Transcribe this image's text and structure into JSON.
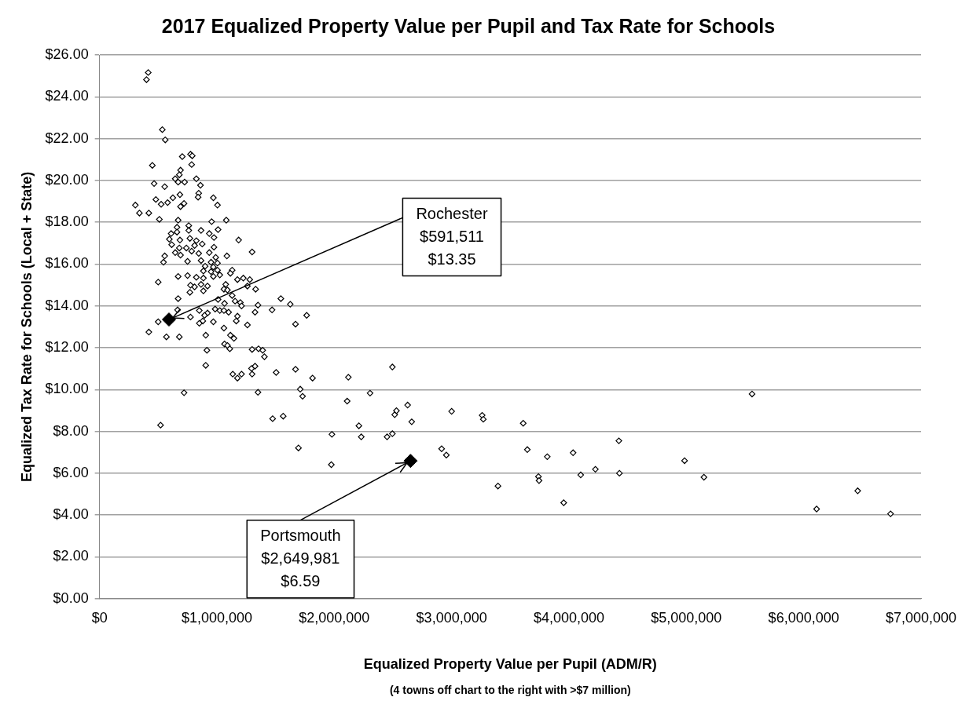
{
  "chart_data": {
    "type": "scatter",
    "title": "2017 Equalized Property Value per Pupil and Tax Rate for Schools",
    "xlabel": "Equalized Property Value per Pupil (ADM/R)",
    "ylabel": "Equalized Tax Rate for Schools (Local + State)",
    "xlim": [
      0,
      7000000
    ],
    "xticks": [
      {
        "value": 0,
        "label": "$0"
      },
      {
        "value": 1000000,
        "label": "$1,000,000"
      },
      {
        "value": 2000000,
        "label": "$2,000,000"
      },
      {
        "value": 3000000,
        "label": "$3,000,000"
      },
      {
        "value": 4000000,
        "label": "$4,000,000"
      },
      {
        "value": 5000000,
        "label": "$5,000,000"
      },
      {
        "value": 6000000,
        "label": "$6,000,000"
      },
      {
        "value": 7000000,
        "label": "$7,000,000"
      }
    ],
    "ylim": [
      0,
      26
    ],
    "yticks": [
      {
        "value": 0,
        "label": "$0.00"
      },
      {
        "value": 2,
        "label": "$2.00"
      },
      {
        "value": 4,
        "label": "$4.00"
      },
      {
        "value": 6,
        "label": "$6.00"
      },
      {
        "value": 8,
        "label": "$8.00"
      },
      {
        "value": 10,
        "label": "$10.00"
      },
      {
        "value": 12,
        "label": "$12.00"
      },
      {
        "value": 14,
        "label": "$14.00"
      },
      {
        "value": 16,
        "label": "$16.00"
      },
      {
        "value": 18,
        "label": "$18.00"
      },
      {
        "value": 20,
        "label": "$20.00"
      },
      {
        "value": 22,
        "label": "$22.00"
      },
      {
        "value": 24,
        "label": "$24.00"
      },
      {
        "value": 26,
        "label": "$26.00"
      }
    ],
    "grid": "y",
    "legend": false,
    "marker": "diamond",
    "series": [
      {
        "color": "#000000",
        "x": [
          415000,
          400000,
          535000,
          560000,
          705000,
          775000,
          790000,
          785000,
          450000,
          690000,
          680000,
          645000,
          670000,
          725000,
          825000,
          860000,
          465000,
          555000,
          845000,
          840000,
          685000,
          625000,
          480000,
          580000,
          525000,
          305000,
          720000,
          690000,
          970000,
          1005000,
          340000,
          420000,
          510000,
          670000,
          955000,
          1080000,
          660000,
          760000,
          865000,
          1010000,
          610000,
          660000,
          760000,
          935000,
          595000,
          685000,
          770000,
          825000,
          975000,
          1185000,
          615000,
          680000,
          740000,
          810000,
          875000,
          975000,
          1300000,
          645000,
          690000,
          785000,
          845000,
          935000,
          555000,
          545000,
          750000,
          865000,
          990000,
          1085000,
          950000,
          1005000,
          900000,
          970000,
          885000,
          950000,
          1005000,
          1130000,
          1115000,
          1025000,
          750000,
          670000,
          825000,
          885000,
          970000,
          500000,
          1175000,
          1225000,
          1280000,
          1075000,
          1260000,
          775000,
          810000,
          865000,
          920000,
          1060000,
          1090000,
          770000,
          885000,
          1330000,
          1130000,
          670000,
          1010000,
          1545000,
          1625000,
          1155000,
          1200000,
          1065000,
          1350000,
          1210000,
          665000,
          850000,
          920000,
          985000,
          1025000,
          1060000,
          1100000,
          1325000,
          1470000,
          1175000,
          895000,
          775000,
          880000,
          970000,
          1165000,
          1260000,
          1670000,
          500000,
          850000,
          1060000,
          420000,
          570000,
          680000,
          905000,
          1115000,
          1145000,
          1065000,
          1090000,
          1110000,
          915000,
          1300000,
          1355000,
          1390000,
          1405000,
          905000,
          1295000,
          1325000,
          1135000,
          1175000,
          1210000,
          1300000,
          1505000,
          1670000,
          1765000,
          2495000,
          2120000,
          1815000,
          2305000,
          2110000,
          1710000,
          1730000,
          1350000,
          1475000,
          1565000,
          1695000,
          1975000,
          1980000,
          2210000,
          2230000,
          2450000,
          2495000,
          2515000,
          2530000,
          2625000,
          2660000,
          3000000,
          3260000,
          3270000,
          3610000,
          2915000,
          2955000,
          3645000,
          3815000,
          4035000,
          3395000,
          3740000,
          3745000,
          3955000,
          5560000,
          4425000,
          4100000,
          4225000,
          4430000,
          4985000,
          5150000,
          6110000,
          6460000,
          6740000,
          520000,
          720000
        ],
        "values": [
          25.16,
          24.82,
          22.43,
          21.94,
          21.14,
          21.25,
          21.18,
          20.76,
          20.72,
          20.49,
          20.27,
          20.08,
          19.92,
          19.92,
          20.08,
          19.77,
          19.85,
          19.7,
          19.39,
          19.2,
          19.32,
          19.17,
          19.09,
          18.94,
          18.86,
          18.82,
          18.9,
          18.75,
          19.17,
          18.82,
          18.44,
          18.44,
          18.14,
          18.1,
          18.03,
          18.1,
          17.76,
          17.84,
          17.61,
          17.65,
          17.46,
          17.53,
          17.61,
          17.46,
          17.19,
          17.15,
          17.23,
          17.12,
          17.27,
          17.15,
          16.93,
          16.77,
          16.77,
          16.89,
          16.96,
          16.81,
          16.58,
          16.55,
          16.43,
          16.62,
          16.51,
          16.55,
          16.39,
          16.09,
          16.13,
          16.17,
          16.32,
          16.39,
          16.09,
          16.05,
          15.9,
          15.86,
          15.67,
          15.64,
          15.71,
          15.71,
          15.56,
          15.48,
          15.45,
          15.41,
          15.37,
          15.33,
          15.41,
          15.14,
          15.26,
          15.33,
          15.26,
          15.03,
          14.95,
          14.99,
          14.91,
          15.03,
          14.95,
          14.8,
          14.76,
          14.65,
          14.72,
          14.8,
          14.5,
          14.35,
          14.31,
          14.35,
          14.08,
          14.23,
          14.16,
          14.12,
          14.04,
          14,
          13.81,
          13.78,
          13.66,
          13.85,
          13.78,
          13.78,
          13.7,
          13.7,
          13.81,
          13.51,
          13.55,
          13.47,
          13.28,
          13.24,
          13.28,
          13.09,
          13.13,
          13.24,
          13.17,
          12.94,
          12.75,
          12.52,
          12.52,
          12.6,
          12.6,
          12.45,
          12.18,
          12.11,
          11.95,
          11.88,
          11.92,
          11.95,
          11.88,
          11.57,
          11.16,
          11.01,
          11.12,
          10.74,
          10.55,
          10.74,
          10.74,
          10.82,
          10.97,
          13.55,
          11.08,
          10.59,
          10.55,
          9.83,
          9.45,
          10.02,
          9.68,
          9.87,
          8.61,
          8.73,
          7.21,
          6.41,
          7.86,
          8.27,
          7.74,
          7.74,
          7.89,
          8.8,
          8.99,
          9.26,
          8.46,
          8.96,
          8.77,
          8.58,
          8.39,
          7.17,
          6.87,
          7.13,
          6.79,
          6.98,
          5.39,
          5.84,
          5.65,
          4.59,
          9.79,
          7.55,
          5.92,
          6.19,
          6,
          6.6,
          5.81,
          4.29,
          5.16,
          4.06,
          8.3,
          9.85
        ]
      },
      {
        "color": "#000000",
        "x": [
          591511
        ],
        "values": [
          13.35
        ]
      },
      {
        "color": "#000000",
        "x": [
          2649981
        ],
        "values": [
          6.59
        ]
      }
    ],
    "annotations": [
      {
        "text": "Rochester\n$591,511\n$13.35",
        "x": 591511,
        "y": 13.35
      },
      {
        "text": "Portsmouth\n$2,649,981\n$6.59",
        "x": 2649981,
        "y": 6.59
      },
      "(4 towns off chart to the right with >$7 million)"
    ]
  }
}
